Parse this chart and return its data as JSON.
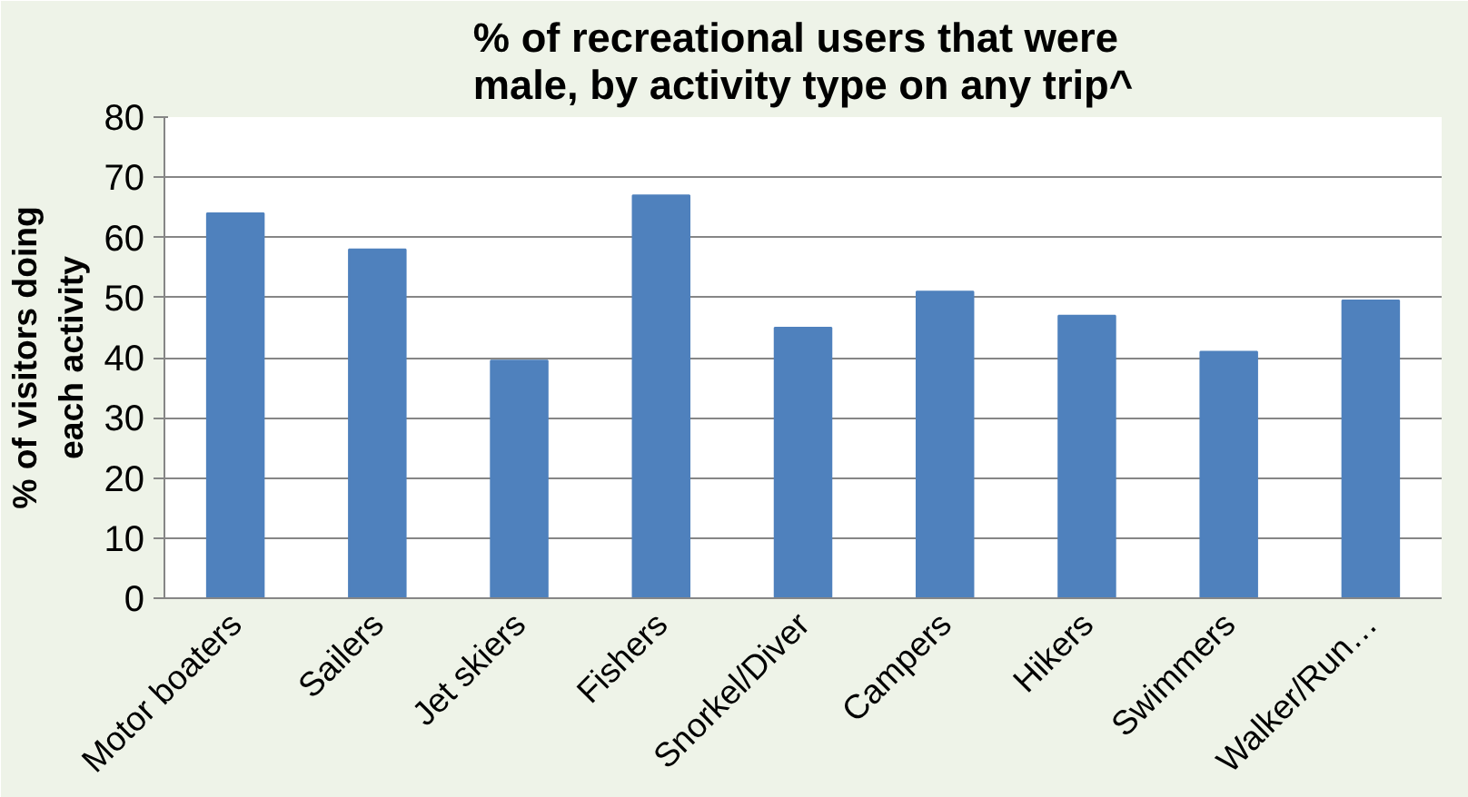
{
  "chart_data": {
    "type": "bar",
    "title": "% of recreational users that were male, by activity type on any trip^",
    "ylabel": "% of visitors doing each activity",
    "categories": [
      "Motor boaters",
      "Sailers",
      "Jet skiers",
      "Fishers",
      "Snorkel/Diver",
      "Campers",
      "Hikers",
      "Swimmers",
      "Walker/Run…"
    ],
    "values": [
      64,
      58,
      39.5,
      67,
      45,
      51,
      47,
      41,
      49.5
    ],
    "color": "#4f81bd",
    "ylim": [
      0,
      80
    ],
    "yticks": [
      0,
      10,
      20,
      30,
      40,
      50,
      60,
      70,
      80
    ],
    "grid": "y"
  }
}
